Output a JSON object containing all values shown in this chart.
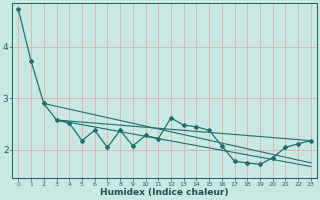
{
  "xlabel": "Humidex (Indice chaleur)",
  "background_color": "#c8e8e4",
  "grid_color": "#e8a8a8",
  "line_color": "#1a7070",
  "xlim": [
    -0.5,
    23.5
  ],
  "ylim": [
    1.45,
    4.85
  ],
  "yticks": [
    2,
    3,
    4
  ],
  "xticks": [
    0,
    1,
    2,
    3,
    4,
    5,
    6,
    7,
    8,
    9,
    10,
    11,
    12,
    13,
    14,
    15,
    16,
    17,
    18,
    19,
    20,
    21,
    22,
    23
  ],
  "series_main_x": [
    0,
    1,
    2,
    3,
    4,
    5,
    6,
    7,
    8,
    9,
    10,
    11,
    12,
    13,
    14,
    15,
    16,
    17,
    18,
    19,
    20,
    21,
    22,
    23
  ],
  "series_main_y": [
    4.72,
    3.72,
    2.9,
    2.58,
    2.52,
    2.18,
    2.38,
    2.05,
    2.38,
    2.08,
    2.28,
    2.22,
    2.62,
    2.48,
    2.45,
    2.38,
    2.08,
    1.78,
    1.75,
    1.72,
    1.85,
    2.05,
    2.12,
    2.18
  ],
  "series_trend1_x": [
    2,
    23
  ],
  "series_trend1_y": [
    2.9,
    1.75
  ],
  "series_trend2_x": [
    3,
    23
  ],
  "series_trend2_y": [
    2.58,
    2.18
  ],
  "series_trend3_x": [
    3,
    23
  ],
  "series_trend3_y": [
    2.58,
    1.68
  ]
}
